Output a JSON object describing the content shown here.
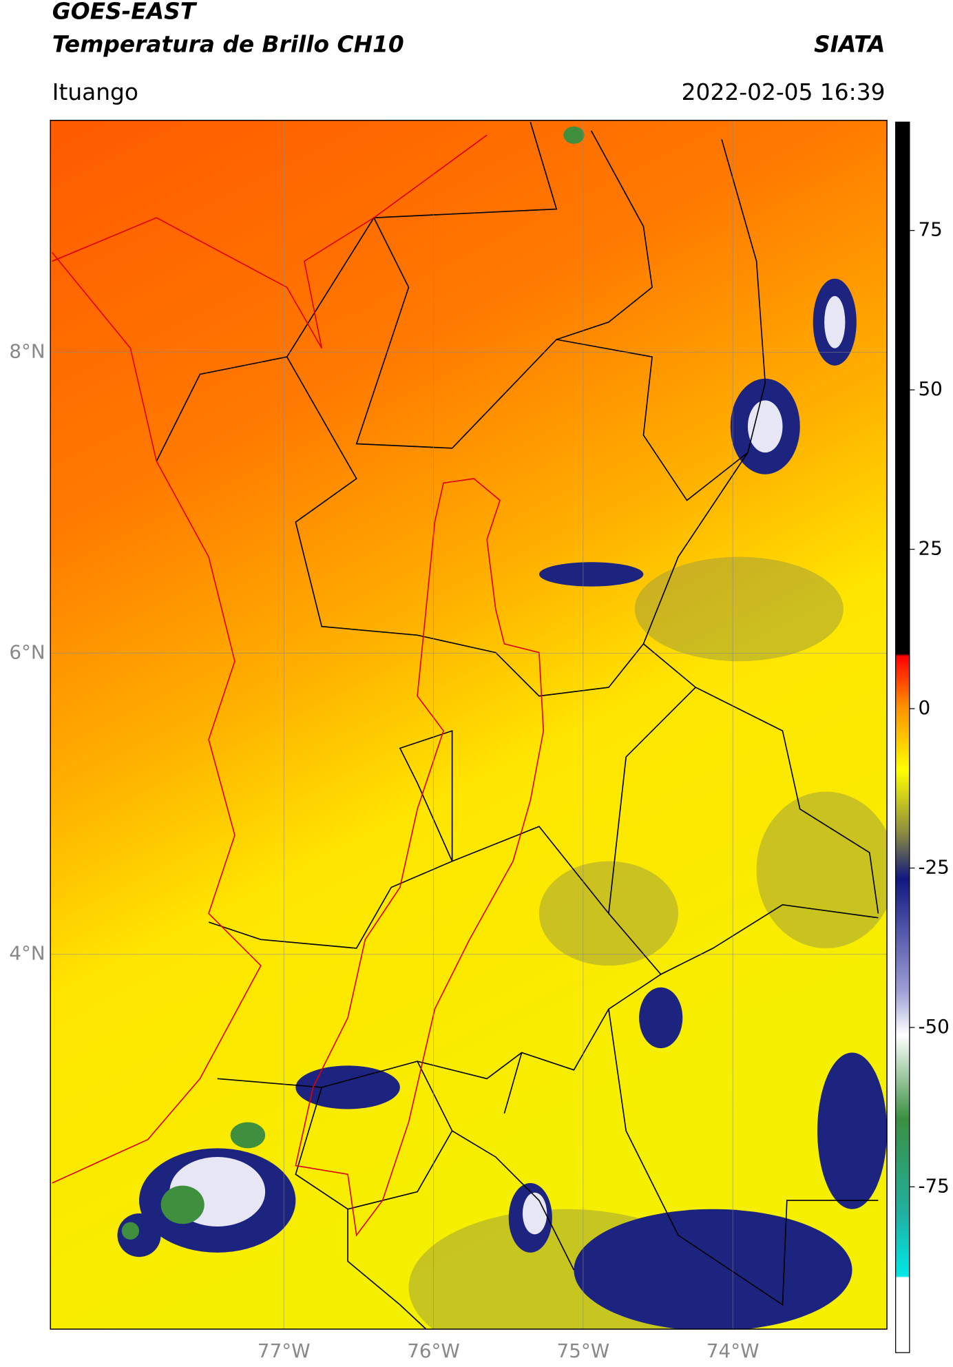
{
  "header": {
    "title": "GOES-EAST",
    "subtitle": "Temperatura de Brillo CH10",
    "brand": "SIATA",
    "location": "Ituango",
    "timestamp": "2022-02-05 16:39"
  },
  "map": {
    "lon_lim": [
      -78.56,
      -72.97
    ],
    "lat_lim": [
      1.51,
      9.54
    ],
    "lat_ticks": [
      {
        "value": 4,
        "label": "4°N"
      },
      {
        "value": 6,
        "label": "6°N"
      },
      {
        "value": 8,
        "label": "8°N"
      }
    ],
    "lon_ticks": [
      {
        "value": -77,
        "label": "77°W"
      },
      {
        "value": -76,
        "label": "76°W"
      },
      {
        "value": -75,
        "label": "75°W"
      },
      {
        "value": -74,
        "label": "74°W"
      }
    ],
    "grid": true
  },
  "colorbar": {
    "lim": [
      -101,
      92
    ],
    "ticks": [
      -75,
      -50,
      -25,
      0,
      25,
      50,
      75
    ]
  }
}
